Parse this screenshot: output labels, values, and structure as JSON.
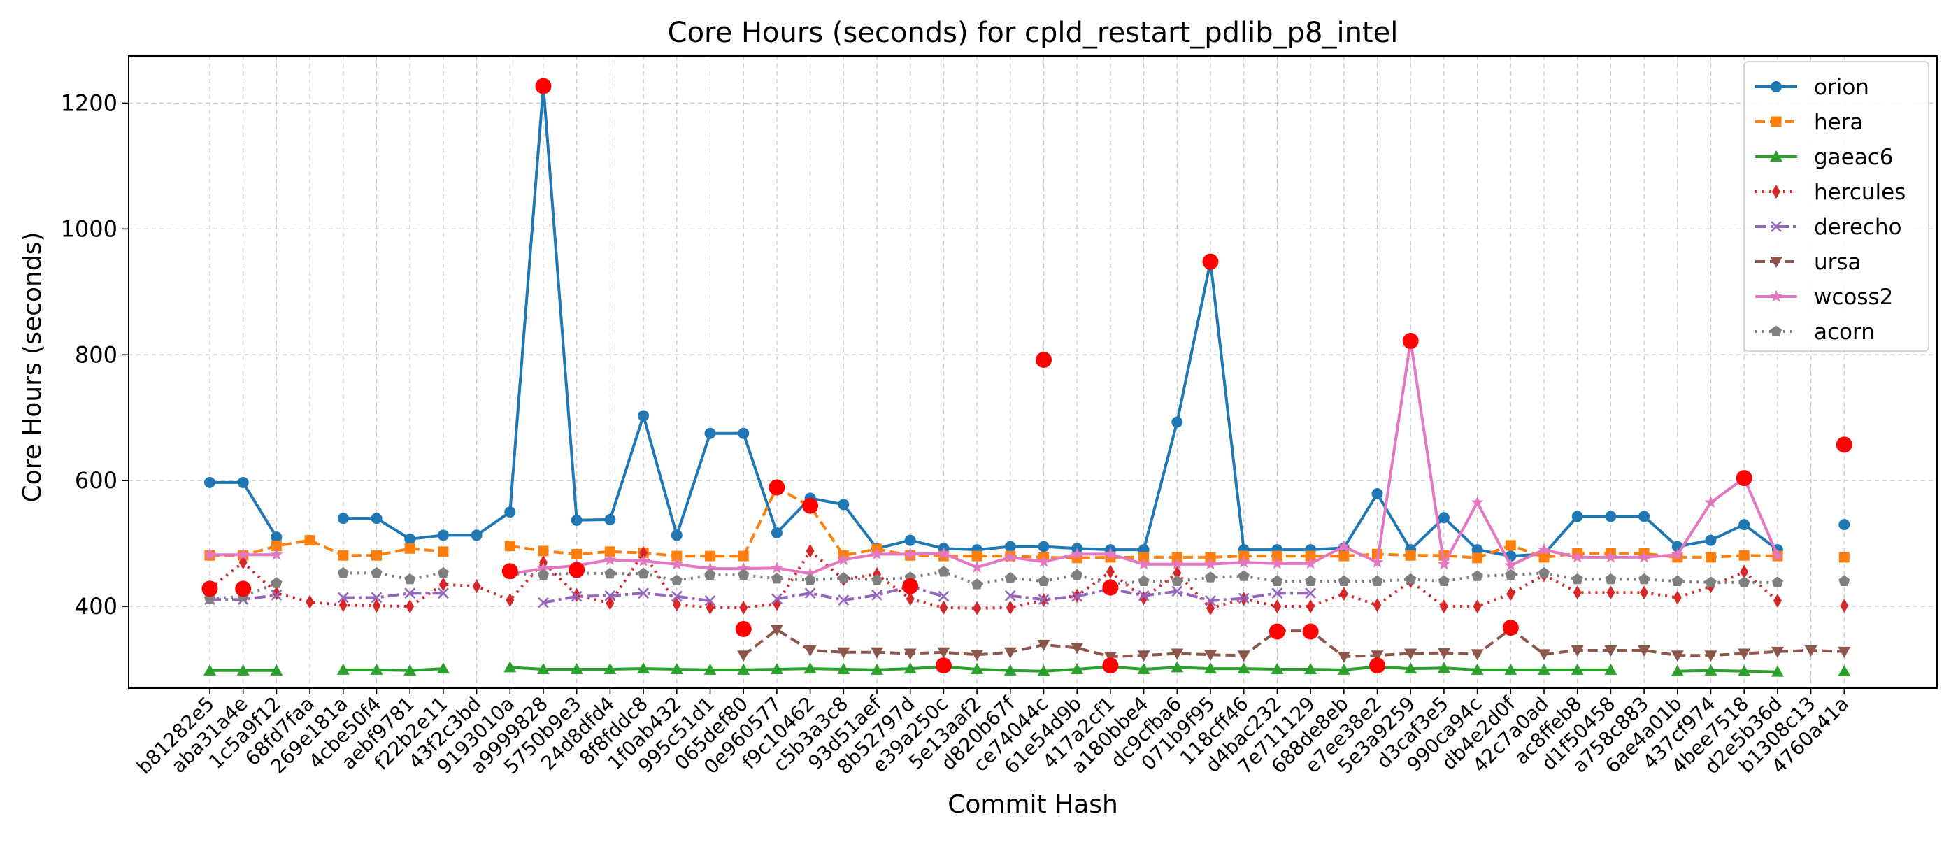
{
  "chart_data": {
    "type": "line",
    "title": "Core Hours (seconds) for cpld_restart_pdlib_p8_intel",
    "xlabel": "Commit Hash",
    "ylabel": "Core Hours (seconds)",
    "ylim": [
      270,
      1275
    ],
    "yticks": [
      400,
      600,
      800,
      1000,
      1200
    ],
    "grid": true,
    "legend_position": "top-right",
    "categories": [
      "b81282e5",
      "aba31a4e",
      "1c5a9f12",
      "68fd7faa",
      "269e181a",
      "4cbe50f4",
      "aebf9781",
      "f22b2e11",
      "43f2c3bd",
      "9193010a",
      "a9999828",
      "5750b9e3",
      "24d8dfd4",
      "8f8fddc8",
      "1f0ab432",
      "995c51d1",
      "065def80",
      "0e960577",
      "f9c10462",
      "c5b3a3c8",
      "93d51aef",
      "8b52797d",
      "e39a250c",
      "5e13aaf2",
      "d820b67f",
      "ce74044c",
      "61e54d9b",
      "417a2cf1",
      "a180bbe4",
      "dc9cfba6",
      "071b9f95",
      "118cff46",
      "d4bac232",
      "7e711129",
      "688de8eb",
      "e7ee38e2",
      "5e3a9259",
      "d3caf3e5",
      "990ca94c",
      "db4e2d0f",
      "42c7a0ad",
      "ac8ffeb8",
      "d1f50458",
      "a758c883",
      "6ae4a01b",
      "437cf974",
      "4bee7518",
      "d2e5b36d",
      "b1308c13",
      "4760a41a"
    ],
    "series": [
      {
        "name": "orion",
        "color": "#1f77b4",
        "marker": "circle",
        "dash": "solid",
        "values": [
          597,
          597,
          510,
          null,
          540,
          540,
          507,
          513,
          513,
          550,
          1227,
          537,
          538,
          703,
          513,
          675,
          675,
          517,
          572,
          562,
          492,
          505,
          492,
          490,
          495,
          495,
          492,
          490,
          490,
          693,
          948,
          490,
          490,
          490,
          493,
          579,
          490,
          541,
          490,
          480,
          483,
          543,
          543,
          543,
          495,
          505,
          530,
          490,
          null,
          530
        ]
      },
      {
        "name": "hera",
        "color": "#ff7f0e",
        "marker": "square",
        "dash": "dashed",
        "values": [
          481,
          481,
          496,
          505,
          481,
          481,
          492,
          487,
          null,
          496,
          488,
          483,
          487,
          485,
          480,
          480,
          480,
          589,
          559,
          481,
          491,
          481,
          480,
          480,
          480,
          478,
          477,
          478,
          478,
          478,
          478,
          480,
          480,
          480,
          480,
          483,
          481,
          481,
          477,
          497,
          478,
          484,
          484,
          484,
          478,
          478,
          481,
          480,
          null,
          478
        ]
      },
      {
        "name": "gaeac6",
        "color": "#2ca02c",
        "marker": "triangle-up",
        "dash": "solid",
        "values": [
          298,
          298,
          298,
          null,
          299,
          299,
          298,
          301,
          null,
          303,
          300,
          300,
          300,
          301,
          300,
          299,
          299,
          300,
          301,
          300,
          299,
          301,
          304,
          300,
          298,
          297,
          300,
          304,
          300,
          303,
          301,
          301,
          300,
          300,
          299,
          304,
          301,
          302,
          299,
          299,
          299,
          299,
          299,
          null,
          297,
          298,
          297,
          296,
          null,
          297
        ]
      },
      {
        "name": "hercules",
        "color": "#d62728",
        "marker": "thin-diamond",
        "dash": "dotted",
        "values": [
          428,
          470,
          421,
          407,
          402,
          401,
          400,
          435,
          432,
          410,
          470,
          418,
          405,
          485,
          403,
          398,
          398,
          404,
          488,
          443,
          451,
          412,
          398,
          397,
          398,
          410,
          417,
          455,
          413,
          453,
          397,
          412,
          400,
          400,
          420,
          402,
          440,
          400,
          400,
          420,
          450,
          422,
          422,
          422,
          414,
          432,
          455,
          409,
          null,
          401
        ]
      },
      {
        "name": "derecho",
        "color": "#9467bd",
        "marker": "x",
        "dash": "dashdot",
        "values": [
          411,
          411,
          418,
          null,
          414,
          414,
          421,
          421,
          null,
          null,
          406,
          416,
          417,
          421,
          416,
          409,
          null,
          412,
          421,
          410,
          418,
          432,
          416,
          null,
          417,
          411,
          416,
          428,
          417,
          424,
          409,
          413,
          421,
          421,
          null,
          null,
          null,
          null,
          null,
          null,
          null,
          null,
          null,
          null,
          null,
          null,
          null,
          null,
          null,
          null
        ]
      },
      {
        "name": "ursa",
        "color": "#8c564b",
        "marker": "triangle-down",
        "dash": "dashed",
        "values": [
          null,
          null,
          null,
          null,
          null,
          null,
          null,
          null,
          null,
          null,
          null,
          null,
          null,
          null,
          null,
          null,
          322,
          363,
          330,
          327,
          327,
          325,
          327,
          323,
          327,
          339,
          334,
          320,
          322,
          325,
          323,
          322,
          361,
          361,
          320,
          322,
          325,
          326,
          324,
          364,
          324,
          330,
          330,
          330,
          322,
          322,
          325,
          328,
          330,
          328
        ]
      },
      {
        "name": "wcoss2",
        "color": "#e377c2",
        "marker": "star",
        "dash": "solid",
        "values": [
          482,
          482,
          482,
          null,
          null,
          null,
          null,
          null,
          null,
          452,
          460,
          465,
          474,
          472,
          467,
          460,
          460,
          461,
          452,
          474,
          483,
          483,
          484,
          462,
          478,
          471,
          483,
          483,
          467,
          467,
          467,
          470,
          468,
          468,
          495,
          470,
          822,
          467,
          565,
          465,
          490,
          478,
          478,
          478,
          482,
          565,
          604,
          481,
          null,
          null
        ]
      },
      {
        "name": "acorn",
        "color": "#7f7f7f",
        "marker": "pentagon",
        "dash": "dotted",
        "values": [
          412,
          416,
          437,
          null,
          453,
          453,
          443,
          453,
          null,
          452,
          450,
          453,
          452,
          452,
          441,
          450,
          450,
          444,
          442,
          445,
          442,
          446,
          455,
          435,
          445,
          440,
          450,
          435,
          440,
          440,
          446,
          448,
          440,
          440,
          440,
          440,
          443,
          440,
          448,
          450,
          453,
          443,
          443,
          443,
          440,
          438,
          438,
          438,
          null,
          440
        ]
      }
    ],
    "highlight_points": [
      {
        "x": "b81282e5",
        "y": 428
      },
      {
        "x": "aba31a4e",
        "y": 428
      },
      {
        "x": "9193010a",
        "y": 456
      },
      {
        "x": "a9999828",
        "y": 1227
      },
      {
        "x": "5750b9e3",
        "y": 458
      },
      {
        "x": "065def80",
        "y": 364
      },
      {
        "x": "0e960577",
        "y": 589
      },
      {
        "x": "f9c10462",
        "y": 560
      },
      {
        "x": "8b52797d",
        "y": 432
      },
      {
        "x": "e39a250c",
        "y": 306
      },
      {
        "x": "ce74044c",
        "y": 792
      },
      {
        "x": "417a2cf1",
        "y": 306
      },
      {
        "x": "417a2cf1",
        "y": 430
      },
      {
        "x": "071b9f95",
        "y": 948
      },
      {
        "x": "d4bac232",
        "y": 360
      },
      {
        "x": "7e711129",
        "y": 360
      },
      {
        "x": "e7ee38e2",
        "y": 306
      },
      {
        "x": "5e3a9259",
        "y": 822
      },
      {
        "x": "db4e2d0f",
        "y": 366
      },
      {
        "x": "4bee7518",
        "y": 604
      },
      {
        "x": "4760a41a",
        "y": 657
      }
    ]
  }
}
